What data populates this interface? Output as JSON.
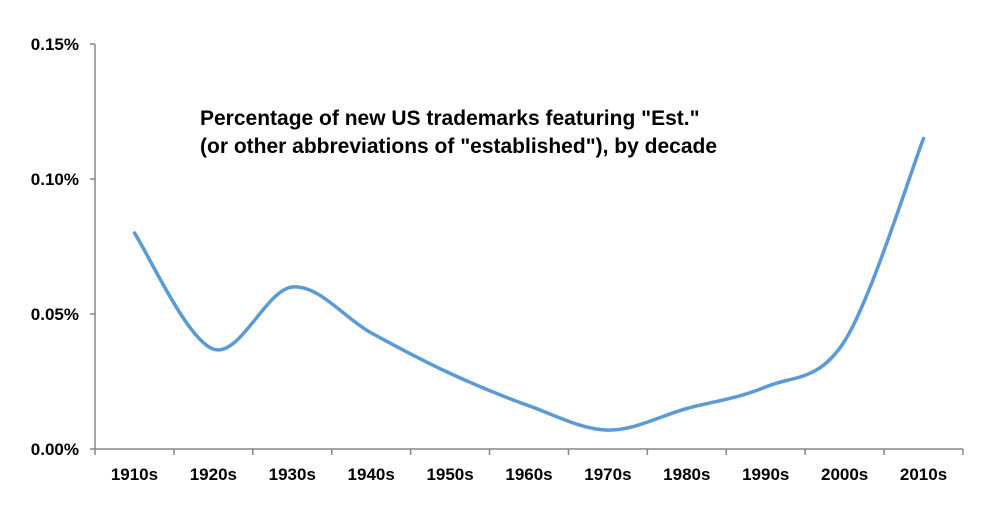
{
  "chart_data": {
    "type": "line",
    "title_lines": [
      "Percentage of new US trademarks featuring \"Est.\"",
      "(or other abbreviations of \"established\"), by decade"
    ],
    "xlabel": "",
    "ylabel": "",
    "categories": [
      "1910s",
      "1920s",
      "1930s",
      "1940s",
      "1950s",
      "1960s",
      "1970s",
      "1980s",
      "1990s",
      "2000s",
      "2010s"
    ],
    "series": [
      {
        "values": [
          0.08,
          0.037,
          0.06,
          0.043,
          0.028,
          0.016,
          0.007,
          0.015,
          0.023,
          0.04,
          0.115
        ]
      }
    ],
    "ylim": [
      0,
      0.15
    ],
    "yticks": [
      0.0,
      0.05,
      0.1,
      0.15
    ],
    "ytick_labels": [
      "0.00%",
      "0.05%",
      "0.10%",
      "0.15%"
    ],
    "value_unit": "%",
    "grid": false,
    "legend": "none",
    "line_color": "#5B9BD5",
    "axis_color": "#868686"
  }
}
